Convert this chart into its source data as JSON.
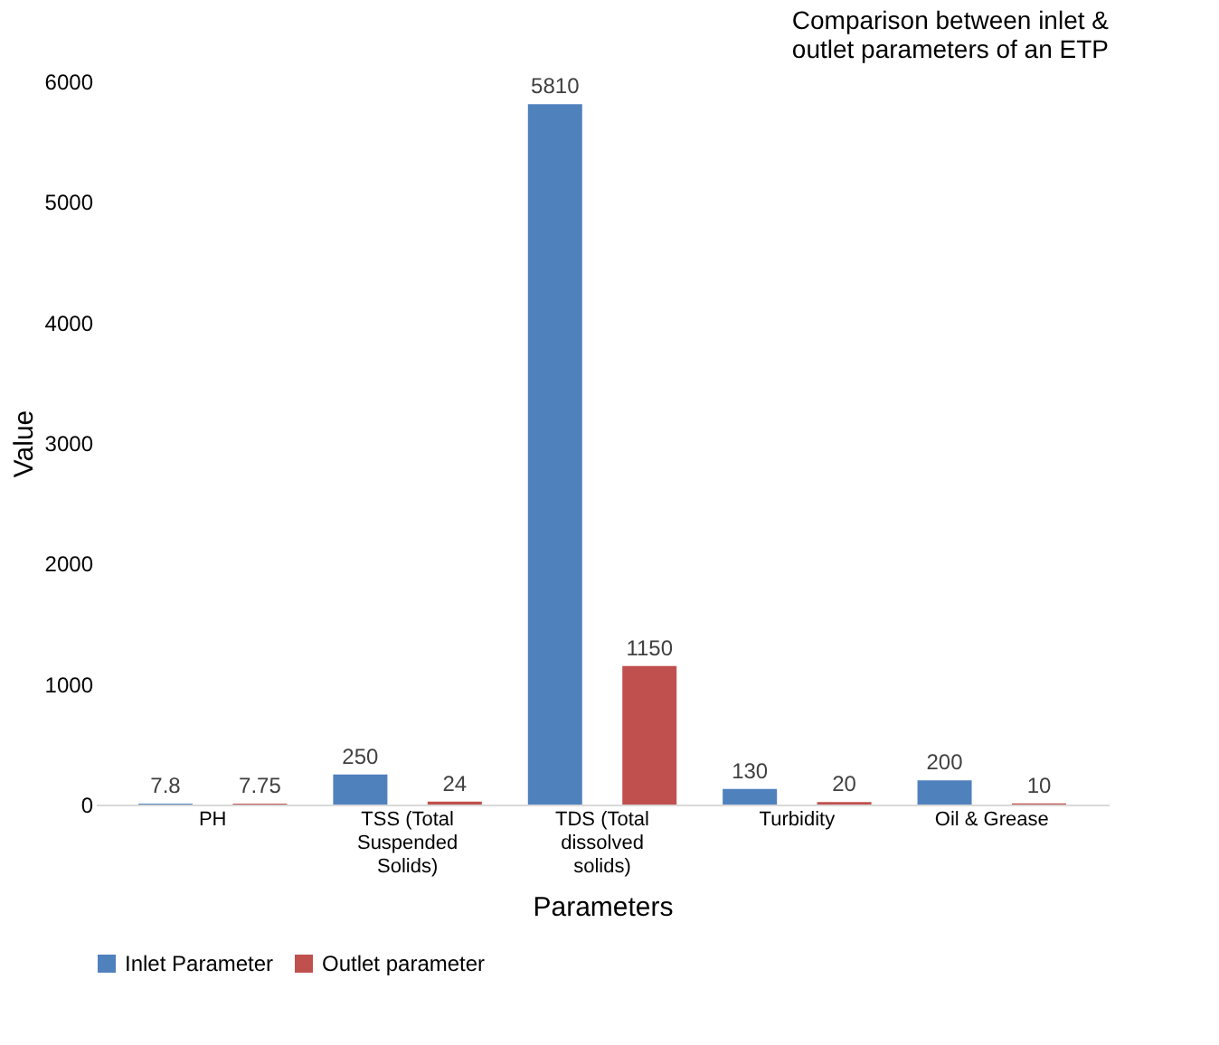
{
  "chart_data": {
    "type": "bar",
    "title": "Comparison between inlet & outlet parameters of an ETP",
    "xlabel": "Parameters",
    "ylabel": "Value",
    "categories": [
      "PH",
      "TSS (Total Suspended Solids)",
      "TDS (Total dissolved solids)",
      "Turbidity",
      "Oil & Grease"
    ],
    "series": [
      {
        "name": "Inlet Parameter",
        "color": "#4f81bd",
        "values": [
          7.8,
          250,
          5810,
          130,
          200
        ]
      },
      {
        "name": "Outlet parameter",
        "color": "#c0504d",
        "values": [
          7.75,
          24,
          1150,
          20,
          10
        ]
      }
    ],
    "ylim": [
      0,
      6000
    ],
    "yticks": [
      0,
      1000,
      2000,
      3000,
      4000,
      5000,
      6000
    ],
    "grid": false,
    "legend": "bottom",
    "data_labels": true
  }
}
